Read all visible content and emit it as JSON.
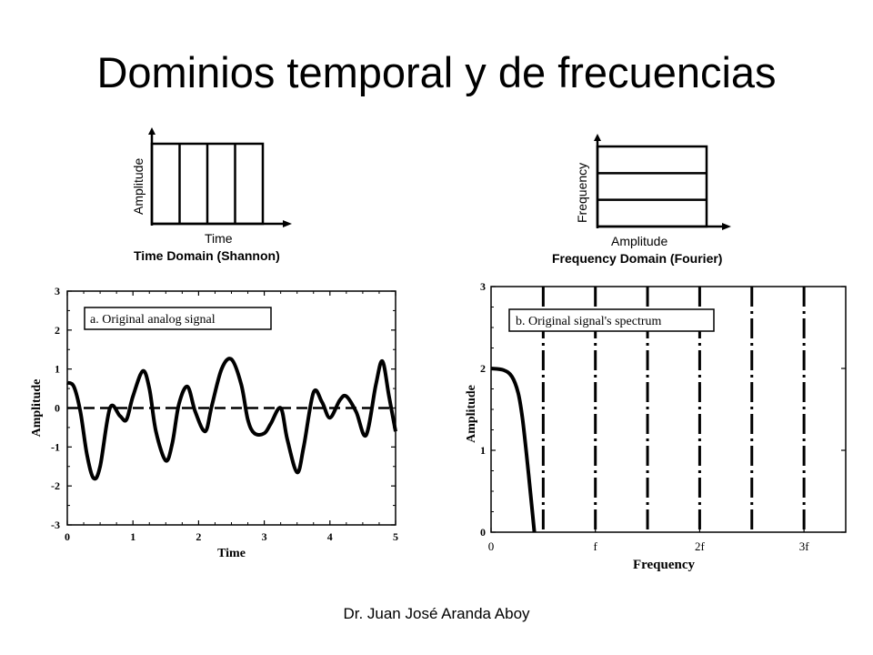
{
  "slide": {
    "title": "Dominios temporal y de frecuencias",
    "footer": "Dr. Juan José Aranda Aboy"
  },
  "chart_data": [
    {
      "type": "diagram",
      "xlabel": "Time",
      "ylabel": "Amplitude",
      "caption": "Time Domain (Shannon)",
      "cells": 4,
      "orientation": "vertical-divisions"
    },
    {
      "type": "diagram",
      "xlabel": "Amplitude",
      "ylabel": "Frequency",
      "caption": "Frequency Domain (Fourier)",
      "cells": 3,
      "orientation": "horizontal-divisions"
    },
    {
      "type": "line",
      "legend": "a.  Original analog signal",
      "xlabel": "Time",
      "ylabel": "Amplitude",
      "xlim": [
        0,
        5
      ],
      "ylim": [
        -3,
        3
      ],
      "xticks": [
        "0",
        "1",
        "2",
        "3",
        "4",
        "5"
      ],
      "yticks": [
        "-3",
        "-2",
        "-1",
        "0",
        "1",
        "2",
        "3"
      ],
      "zero_line": "dashed",
      "series": [
        {
          "x": [
            0,
            0.1,
            0.2,
            0.3,
            0.4,
            0.5,
            0.65,
            0.8,
            0.9,
            1.0,
            1.15,
            1.25,
            1.35,
            1.5,
            1.6,
            1.7,
            1.83,
            1.95,
            2.1,
            2.2,
            2.35,
            2.5,
            2.65,
            2.75,
            2.85,
            3.0,
            3.1,
            3.25,
            3.35,
            3.5,
            3.6,
            3.75,
            3.88,
            4.0,
            4.15,
            4.25,
            4.4,
            4.55,
            4.7,
            4.8,
            4.9,
            5.0
          ],
          "y": [
            0.65,
            0.55,
            -0.1,
            -1.2,
            -1.8,
            -1.5,
            0.0,
            -0.2,
            -0.3,
            0.3,
            0.95,
            0.5,
            -0.6,
            -1.35,
            -0.9,
            0.1,
            0.55,
            -0.1,
            -0.6,
            0.05,
            1.0,
            1.25,
            0.6,
            -0.3,
            -0.65,
            -0.65,
            -0.4,
            0.0,
            -0.8,
            -1.65,
            -1.0,
            0.4,
            0.15,
            -0.25,
            0.2,
            0.3,
            -0.1,
            -0.7,
            0.6,
            1.2,
            0.3,
            -0.6
          ]
        }
      ]
    },
    {
      "type": "line",
      "legend": "b.  Original signal's spectrum",
      "xlabel": "Frequency",
      "ylabel": "Amplitude",
      "xlim": [
        0,
        3.4
      ],
      "ylim": [
        0,
        3
      ],
      "xticks": [
        "0",
        "f",
        "2f",
        "3f"
      ],
      "xtick_positions": [
        0,
        1,
        2,
        3
      ],
      "xtick_subscript": "s",
      "yticks": [
        "0",
        "1",
        "2",
        "3"
      ],
      "dashdot_lines_x": [
        0.5,
        1.0,
        1.5,
        2.0,
        2.5,
        3.0
      ],
      "series": [
        {
          "x": [
            0,
            0.12,
            0.2,
            0.26,
            0.3,
            0.34,
            0.38,
            0.415
          ],
          "y": [
            2.0,
            1.98,
            1.9,
            1.7,
            1.4,
            0.95,
            0.45,
            0.0
          ]
        }
      ]
    }
  ]
}
